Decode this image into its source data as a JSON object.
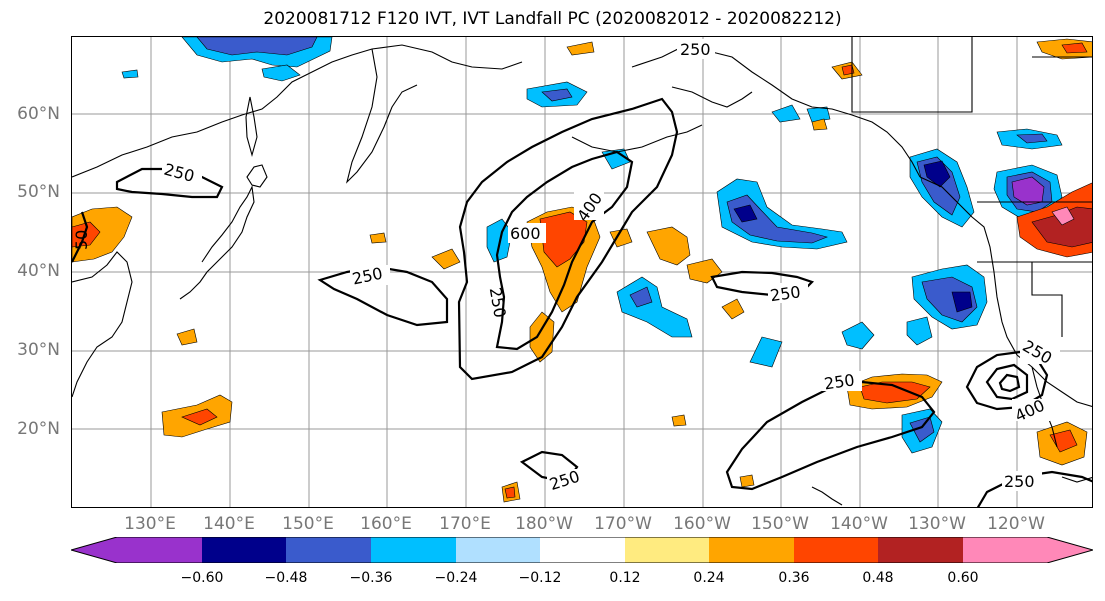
{
  "title": "2020081712 F120 IVT, IVT Landfall PC (2020082012 - 2020082212)",
  "lat_labels": [
    "60°N",
    "50°N",
    "40°N",
    "30°N",
    "20°N"
  ],
  "lon_labels": [
    "130°E",
    "140°E",
    "150°E",
    "160°E",
    "170°E",
    "180°W",
    "170°W",
    "160°W",
    "150°W",
    "140°W",
    "130°W",
    "120°W"
  ],
  "contour_labels": {
    "c1": "250",
    "c2": "250",
    "c3": "250",
    "c4": "250",
    "c5": "600",
    "c6": "400",
    "c7": "250",
    "c8": "250",
    "c9": "250",
    "c10": "250",
    "c11": "400",
    "c12": "250",
    "c13": "50"
  },
  "colorbar": {
    "ticks": [
      "−0.60",
      "−0.48",
      "−0.36",
      "−0.24",
      "−0.12",
      "0.12",
      "0.24",
      "0.36",
      "0.48",
      "0.60"
    ],
    "colors": [
      "#9932cc",
      "#00008b",
      "#3a5bcc",
      "#00bfff",
      "#b0e0ff",
      "#ffffff",
      "#ffeb80",
      "#ffa500",
      "#ff4500",
      "#b22222",
      "#ff88b8"
    ]
  }
}
